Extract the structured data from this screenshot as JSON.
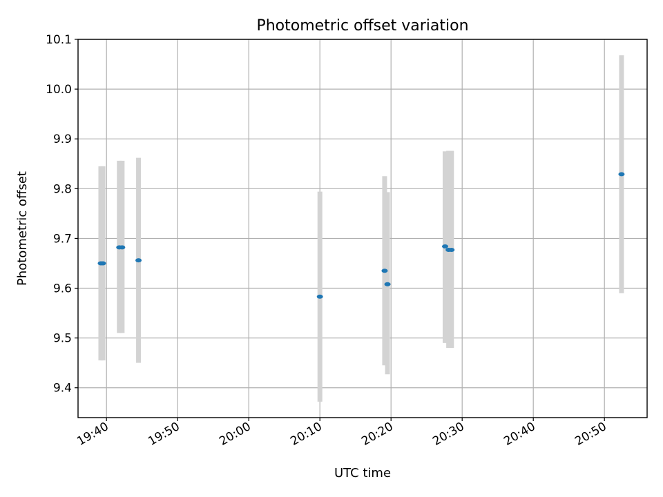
{
  "chart_data": {
    "type": "scatter",
    "title": "Photometric offset variation",
    "xlabel": "UTC time",
    "ylabel": "Photometric offset",
    "grid": true,
    "legend": "none",
    "x_axis": {
      "kind": "time",
      "range": [
        "19:36:00",
        "20:56:00"
      ],
      "ticks": [
        "19:40",
        "19:50",
        "20:00",
        "20:10",
        "20:20",
        "20:30",
        "20:40",
        "20:50"
      ]
    },
    "y_axis": {
      "range": [
        9.34,
        10.1
      ],
      "ticks": [
        9.4,
        9.5,
        9.6,
        9.7,
        9.8,
        9.9,
        10.0,
        10.1
      ],
      "tick_labels": [
        "9.4",
        "9.5",
        "9.6",
        "9.7",
        "9.8",
        "9.9",
        "10.0",
        "10.1"
      ]
    },
    "colors": {
      "points": "#1f77b4",
      "error_bars": "#d3d3d3",
      "grid": "#b0b0b0"
    },
    "points": [
      {
        "x": "19:39:12",
        "y": 9.65,
        "err_low": 9.455,
        "err_high": 9.845
      },
      {
        "x": "19:39:30",
        "y": 9.65,
        "err_low": 9.455,
        "err_high": 9.845
      },
      {
        "x": "19:41:48",
        "y": 9.682,
        "err_low": 9.51,
        "err_high": 9.856
      },
      {
        "x": "19:42:12",
        "y": 9.682,
        "err_low": 9.51,
        "err_high": 9.856
      },
      {
        "x": "19:44:30",
        "y": 9.656,
        "err_low": 9.45,
        "err_high": 9.862
      },
      {
        "x": "20:10:00",
        "y": 9.583,
        "err_low": 9.372,
        "err_high": 9.794
      },
      {
        "x": "20:19:06",
        "y": 9.635,
        "err_low": 9.445,
        "err_high": 9.825
      },
      {
        "x": "20:19:30",
        "y": 9.608,
        "err_low": 9.427,
        "err_high": 9.793
      },
      {
        "x": "20:27:36",
        "y": 9.684,
        "err_low": 9.49,
        "err_high": 9.875
      },
      {
        "x": "20:28:06",
        "y": 9.677,
        "err_low": 9.48,
        "err_high": 9.876
      },
      {
        "x": "20:28:30",
        "y": 9.677,
        "err_low": 9.48,
        "err_high": 9.876
      },
      {
        "x": "20:52:24",
        "y": 9.829,
        "err_low": 9.59,
        "err_high": 10.068
      }
    ]
  }
}
